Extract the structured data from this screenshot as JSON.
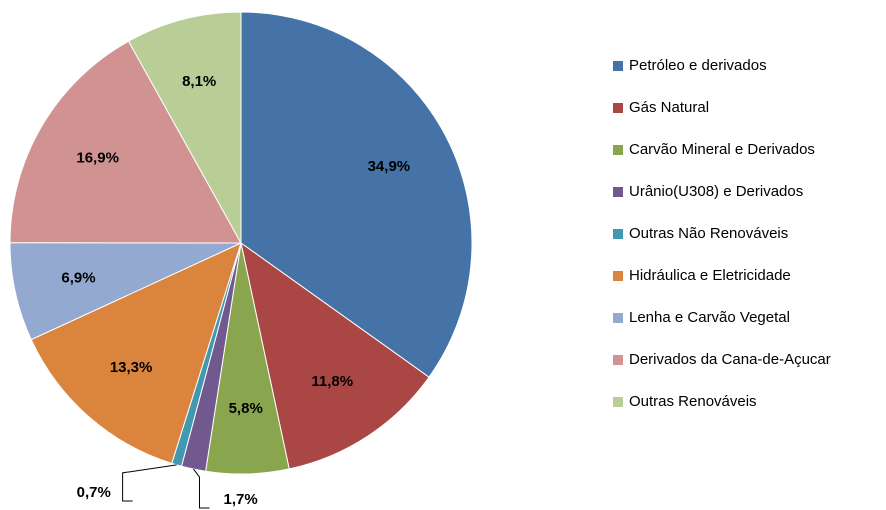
{
  "chart_data": {
    "type": "pie",
    "categories": [
      "Petróleo e derivados",
      "Gás Natural",
      "Carvão Mineral e Derivados",
      "Urânio(U308) e Derivados",
      "Outras Não Renováveis",
      "Hidráulica e Eletricidade",
      "Lenha e Carvão Vegetal",
      "Derivados da Cana-de-Açucar",
      "Outras Renováveis"
    ],
    "values": [
      34.9,
      11.8,
      5.8,
      1.7,
      0.7,
      13.3,
      6.9,
      16.9,
      8.1
    ],
    "value_labels": [
      "34,9%",
      "11,8%",
      "5,8%",
      "1,7%",
      "0,7%",
      "13,3%",
      "6,9%",
      "16,9%",
      "8,1%"
    ],
    "colors": [
      "#4572a7",
      "#aa4643",
      "#89a54e",
      "#71588f",
      "#4198af",
      "#db843d",
      "#93a9cf",
      "#d19392",
      "#b9cd96"
    ],
    "legend": "right"
  }
}
